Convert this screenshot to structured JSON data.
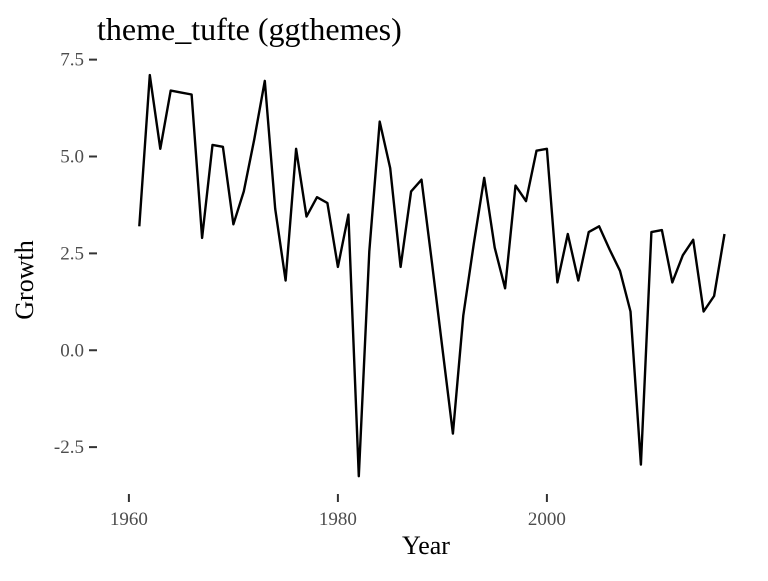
{
  "chart_data": {
    "type": "line",
    "title": "theme_tufte (ggthemes)",
    "xlabel": "Year",
    "ylabel": "Growth",
    "xlim": [
      1958,
      2018
    ],
    "ylim": [
      -3.4,
      7.8
    ],
    "grid": false,
    "x_ticks": [
      1960,
      1980,
      2000
    ],
    "y_ticks": [
      -2.5,
      0.0,
      2.5,
      5.0,
      7.5
    ],
    "y_tick_labels": [
      "-2.5",
      "0.0",
      "2.5",
      "5.0",
      "7.5"
    ],
    "series": [
      {
        "x": [
          1961,
          1962,
          1963,
          1964,
          1965,
          1966,
          1967,
          1968,
          1969,
          1970,
          1971,
          1972,
          1973,
          1974,
          1975,
          1976,
          1977,
          1978,
          1979,
          1980,
          1981,
          1982,
          1983,
          1984,
          1985,
          1986,
          1987,
          1988,
          1989,
          1990,
          1991,
          1992,
          1993,
          1994,
          1995,
          1996,
          1997,
          1998,
          1999,
          2000,
          2001,
          2002,
          2003,
          2004,
          2005,
          2006,
          2007,
          2008,
          2009,
          2010,
          2011,
          2012,
          2013,
          2014,
          2015,
          2016,
          2017
        ],
        "values": [
          3.2,
          7.1,
          5.2,
          6.7,
          6.65,
          6.6,
          2.9,
          5.3,
          5.25,
          3.25,
          4.1,
          5.45,
          6.95,
          3.65,
          1.8,
          5.2,
          3.45,
          3.95,
          3.8,
          2.15,
          3.5,
          -3.25,
          2.55,
          5.9,
          4.7,
          2.15,
          4.1,
          4.4,
          2.25,
          0.05,
          -2.15,
          0.9,
          2.75,
          4.45,
          2.65,
          1.6,
          4.25,
          3.85,
          5.15,
          5.2,
          1.75,
          3.0,
          1.8,
          3.05,
          3.2,
          2.6,
          2.05,
          1.0,
          -2.95,
          3.05,
          3.1,
          1.75,
          2.45,
          2.85,
          1.0,
          1.4,
          3.0
        ]
      }
    ]
  }
}
